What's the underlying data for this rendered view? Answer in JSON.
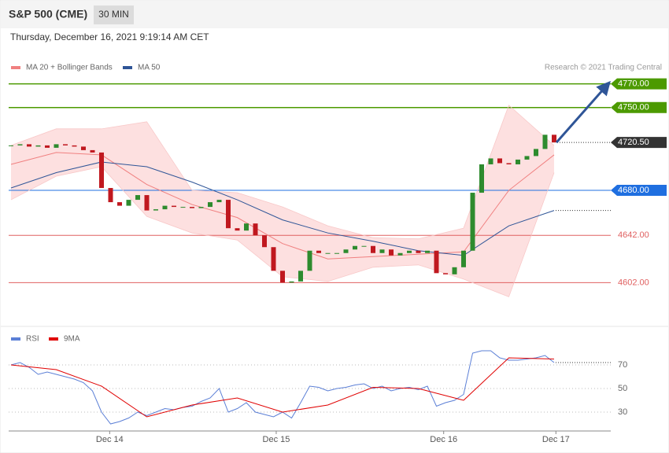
{
  "chart_data": {
    "type": "candlestick",
    "title": "S&P 500 (CME)",
    "interval": "30 MIN",
    "timestamp": "Thursday, December 16, 2021 9:19:14 AM CET",
    "credit": "Research © 2021 Trading Central",
    "x": [
      0,
      1,
      2,
      3,
      4,
      5,
      6,
      7,
      8,
      9,
      10,
      11,
      12,
      13,
      14,
      15,
      16,
      17,
      18,
      19,
      20,
      21,
      22,
      23,
      24,
      25,
      26,
      27,
      28,
      29,
      30,
      31,
      32,
      33,
      34,
      35,
      36,
      37,
      38,
      39,
      40,
      41,
      42,
      43,
      44,
      45,
      46,
      47,
      48,
      49,
      50,
      51,
      52,
      53,
      54,
      55,
      56,
      57,
      58,
      59,
      60
    ],
    "close": [
      4718,
      4719,
      4717,
      4718,
      4716,
      4719,
      4718,
      4717,
      4714,
      4712,
      4682,
      4670,
      4667,
      4672,
      4676,
      4663,
      4664,
      4667,
      4666,
      4666,
      4665,
      4666,
      4670,
      4672,
      4648,
      4646,
      4652,
      4642,
      4632,
      4612,
      4602,
      4603,
      4612,
      4629,
      4627,
      4627,
      4627,
      4630,
      4633,
      4633,
      4627,
      4630,
      4625,
      4627,
      4629,
      4627,
      4629,
      4610,
      4609,
      4615,
      4629,
      4678,
      4702,
      4707,
      4703,
      4702,
      4706,
      4709,
      4715,
      4727,
      4720.5
    ],
    "up_color": "#2e8b2e",
    "down_color": "#c0181f",
    "xlim": [
      -0.26,
      66.26
    ],
    "xticks": [
      {
        "value": 10.9,
        "label": "Dec 14"
      },
      {
        "value": 29.3,
        "label": "Dec 15"
      },
      {
        "value": 47.8,
        "label": "Dec 16"
      },
      {
        "value": 60.2,
        "label": "Dec 17"
      }
    ],
    "ylim": [
      4565,
      4817
    ],
    "series": [
      {
        "name": "MA 20 + Bollinger Bands",
        "color": "#f08080",
        "band_color": "#fde0e0",
        "x": [
          0,
          5,
          10,
          15,
          20,
          25,
          30,
          35,
          40,
          45,
          50,
          55,
          60
        ],
        "values": [
          4702,
          4712,
          4710,
          4685,
          4668,
          4657,
          4635,
          4622,
          4624,
          4626,
          4628,
          4680,
          4710
        ],
        "upper": [
          4718,
          4732,
          4732,
          4738,
          4680,
          4678,
          4666,
          4650,
          4640,
          4639,
          4648,
          4752,
          4718
        ],
        "lower": [
          4672,
          4692,
          4700,
          4658,
          4644,
          4638,
          4607,
          4603,
          4615,
          4617,
          4605,
          4590,
          4695
        ]
      },
      {
        "name": "MA 50",
        "color": "#2f5597",
        "x": [
          0,
          5,
          10,
          15,
          20,
          25,
          30,
          35,
          40,
          45,
          50,
          55,
          60
        ],
        "values": [
          4682,
          4695,
          4704,
          4700,
          4687,
          4672,
          4655,
          4644,
          4637,
          4629,
          4625,
          4650,
          4663
        ]
      }
    ],
    "levels": [
      {
        "value": 4770,
        "label": "4770.00",
        "color": "#4c9a00",
        "style": "tag"
      },
      {
        "value": 4750,
        "label": "4750.00",
        "color": "#4c9a00",
        "style": "tag"
      },
      {
        "value": 4720.5,
        "label": "4720.50",
        "color": "#333333",
        "style": "tag",
        "dotted": true
      },
      {
        "value": 4680,
        "label": "4680.00",
        "color": "#1f6fe0",
        "style": "tag"
      },
      {
        "value": 4642,
        "label": "4642.00",
        "color": "#e06060",
        "style": "text"
      },
      {
        "value": 4602,
        "label": "4602.00",
        "color": "#e06060",
        "style": "text"
      }
    ],
    "rsi": {
      "ylim": [
        16,
        86
      ],
      "yticks": [
        30,
        50,
        70
      ],
      "series": [
        {
          "name": "RSI",
          "color": "#5b7fd6",
          "x": [
            0,
            1,
            2,
            3,
            4,
            5,
            6,
            7,
            8,
            9,
            10,
            11,
            12,
            13,
            14,
            15,
            16,
            17,
            18,
            19,
            20,
            21,
            22,
            23,
            24,
            25,
            26,
            27,
            28,
            29,
            30,
            31,
            32,
            33,
            34,
            35,
            36,
            37,
            38,
            39,
            40,
            41,
            42,
            43,
            44,
            45,
            46,
            47,
            48,
            49,
            50,
            51,
            52,
            53,
            54,
            55,
            56,
            57,
            58,
            59,
            60
          ],
          "values": [
            70,
            72,
            68,
            62,
            64,
            62,
            60,
            58,
            55,
            48,
            30,
            20,
            22,
            25,
            30,
            27,
            30,
            33,
            32,
            34,
            35,
            39,
            42,
            50,
            30,
            33,
            38,
            30,
            28,
            26,
            30,
            25,
            38,
            52,
            51,
            48,
            50,
            51,
            53,
            54,
            50,
            52,
            48,
            50,
            51,
            49,
            52,
            35,
            38,
            40,
            45,
            80,
            82,
            82,
            76,
            74,
            74,
            75,
            76,
            78,
            72
          ]
        },
        {
          "name": "9MA",
          "color": "#e00000",
          "x": [
            0,
            5,
            10,
            15,
            20,
            25,
            30,
            35,
            40,
            45,
            50,
            55,
            60
          ],
          "values": [
            70,
            66,
            52,
            26,
            36,
            42,
            30,
            36,
            51,
            50,
            40,
            76,
            75
          ]
        }
      ]
    }
  }
}
